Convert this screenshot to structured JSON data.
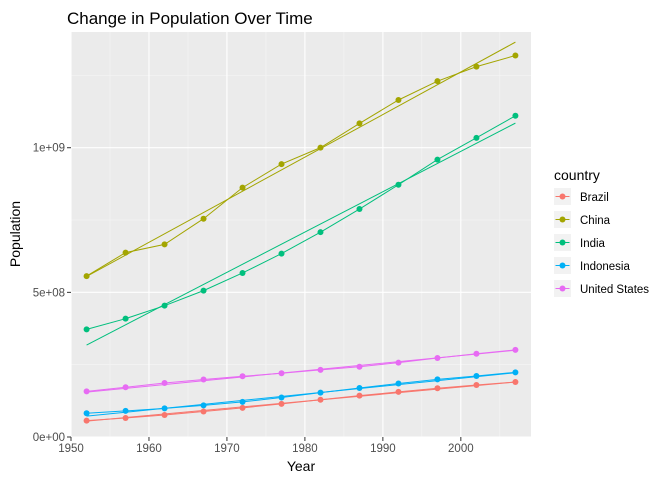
{
  "chart_data": {
    "type": "line",
    "title": "Change in Population Over Time",
    "xlabel": "Year",
    "ylabel": "Population",
    "xlim": [
      1950,
      2009
    ],
    "ylim": [
      0,
      1400000000
    ],
    "x_ticks": [
      1950,
      1960,
      1970,
      1980,
      1990,
      2000
    ],
    "y_ticks": [
      {
        "value": 0,
        "label": "0e+00"
      },
      {
        "value": 500000000,
        "label": "5e+08"
      },
      {
        "value": 1000000000,
        "label": "1e+09"
      }
    ],
    "grid": true,
    "legend": {
      "title": "country",
      "placement": "right"
    },
    "x": [
      1952,
      1957,
      1962,
      1967,
      1972,
      1977,
      1982,
      1987,
      1992,
      1997,
      2002,
      2007
    ],
    "series": [
      {
        "name": "Brazil",
        "color": "#F8766D",
        "values": [
          56602560,
          65551171,
          76039390,
          88049823,
          100840058,
          114313951,
          128962939,
          142938076,
          155975974,
          168546719,
          179914212,
          190010647
        ],
        "trend": [
          55000000,
          190000000
        ]
      },
      {
        "name": "China",
        "color": "#A3A500",
        "values": [
          556263527,
          637408000,
          665770000,
          754550000,
          862030000,
          943455000,
          1000281000,
          1084035000,
          1164970000,
          1230075000,
          1280400000,
          1318683096
        ],
        "trend": [
          555000000,
          1365000000
        ]
      },
      {
        "name": "India",
        "color": "#00BF7D",
        "values": [
          372000000,
          409000000,
          454000000,
          506000000,
          567000000,
          634000000,
          708000000,
          788000000,
          872000000,
          959000000,
          1034172547,
          1110396331
        ],
        "trend": [
          318000000,
          1085000000
        ]
      },
      {
        "name": "Indonesia",
        "color": "#00B0F6",
        "values": [
          82052000,
          90124000,
          99028000,
          109343000,
          121282000,
          136725000,
          153343000,
          169276000,
          184816000,
          199278000,
          211060000,
          223547000
        ],
        "trend": [
          72000000,
          222000000
        ]
      },
      {
        "name": "United States",
        "color": "#E76BF3",
        "values": [
          157553000,
          171984000,
          186538000,
          198712000,
          209896000,
          220239000,
          232187835,
          242803533,
          256894189,
          272911760,
          287675526,
          301139947
        ],
        "trend": [
          155000000,
          300000000
        ]
      }
    ]
  }
}
